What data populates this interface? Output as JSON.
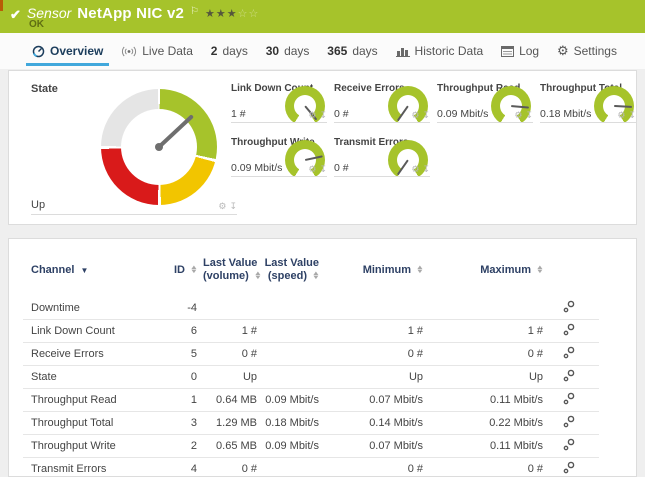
{
  "header": {
    "kind": "Sensor",
    "title": "NetApp NIC v2",
    "status": "OK",
    "rating": {
      "filled": 3,
      "total": 5
    },
    "bar_color": "#a6c32b"
  },
  "tabs": [
    {
      "label": "Overview",
      "icon": "gauge-icon",
      "active": true
    },
    {
      "label": "Live Data",
      "icon": "broadcast-icon",
      "active": false
    },
    {
      "number": "2",
      "label": "days",
      "active": false
    },
    {
      "number": "30",
      "label": "days",
      "active": false
    },
    {
      "number": "365",
      "label": "days",
      "active": false
    },
    {
      "label": "Historic Data",
      "icon": "chart-icon",
      "active": false
    },
    {
      "label": "Log",
      "icon": "log-icon",
      "active": false
    },
    {
      "label": "Settings",
      "icon": "gear-icon",
      "active": false
    }
  ],
  "state_panel": {
    "title": "State",
    "value": "Up",
    "needle_deg": 47,
    "segment_colors": {
      "ok": "#a6c32b",
      "warning": "#f2c500",
      "error": "#d91a1a",
      "none": "#e5e5e5"
    }
  },
  "mini_gauges": [
    {
      "title": "Link Down Count",
      "value": "1 #",
      "needle_deg": 140
    },
    {
      "title": "Receive Errors",
      "value": "0 #",
      "needle_deg": 215
    },
    {
      "title": "Throughput Read",
      "value": "0.09 Mbit/s",
      "needle_deg": 95
    },
    {
      "title": "Throughput Total",
      "value": "0.18 Mbit/s",
      "needle_deg": 93
    },
    {
      "title": "Throughput Write",
      "value": "0.09 Mbit/s",
      "needle_deg": 78
    },
    {
      "title": "Transmit Errors",
      "value": "0 #",
      "needle_deg": 215
    }
  ],
  "table": {
    "columns": [
      {
        "line1": "Channel",
        "line2": "",
        "sorted": true
      },
      {
        "line1": "ID",
        "line2": "",
        "sortable": true
      },
      {
        "line1": "Last Value",
        "line2": "(volume)",
        "sortable": true
      },
      {
        "line1": "Last Value",
        "line2": "(speed)",
        "sortable": true
      },
      {
        "line1": "Minimum",
        "line2": "",
        "sortable": true
      },
      {
        "line1": "Maximum",
        "line2": "",
        "sortable": true
      }
    ],
    "rows": [
      {
        "channel": "Downtime",
        "id": "-4",
        "volume": "",
        "speed": "",
        "min": "",
        "max": ""
      },
      {
        "channel": "Link Down Count",
        "id": "6",
        "volume": "1 #",
        "speed": "",
        "min": "1 #",
        "max": "1 #"
      },
      {
        "channel": "Receive Errors",
        "id": "5",
        "volume": "0 #",
        "speed": "",
        "min": "0 #",
        "max": "0 #"
      },
      {
        "channel": "State",
        "id": "0",
        "volume": "Up",
        "speed": "",
        "min": "Up",
        "max": "Up"
      },
      {
        "channel": "Throughput Read",
        "id": "1",
        "volume": "0.64 MB",
        "speed": "0.09 Mbit/s",
        "min": "0.07 Mbit/s",
        "max": "0.11 Mbit/s"
      },
      {
        "channel": "Throughput Total",
        "id": "3",
        "volume": "1.29 MB",
        "speed": "0.18 Mbit/s",
        "min": "0.14 Mbit/s",
        "max": "0.22 Mbit/s"
      },
      {
        "channel": "Throughput Write",
        "id": "2",
        "volume": "0.65 MB",
        "speed": "0.09 Mbit/s",
        "min": "0.07 Mbit/s",
        "max": "0.11 Mbit/s"
      },
      {
        "channel": "Transmit Errors",
        "id": "4",
        "volume": "0 #",
        "speed": "",
        "min": "0 #",
        "max": "0 #"
      }
    ]
  },
  "accent_colors": {
    "active_tab_underline": "#41a8dc",
    "table_header_text": "#2e4165"
  }
}
